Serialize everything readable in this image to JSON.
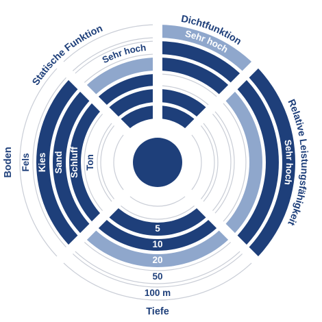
{
  "colors": {
    "dark": "#1e3f7a",
    "light": "#8fa7cc",
    "outline": "#c9cdd6",
    "text_dark": "#1e3f7a",
    "text_light": "#ffffff"
  },
  "quadrants": {
    "statische_funktion": {
      "title": "Statische Funktion",
      "ring_label": "Sehr hoch",
      "rings": [
        "white",
        "white",
        "light",
        "dark",
        "dark",
        "dark"
      ]
    },
    "dichtfunktion": {
      "title": "Dichtfunktion",
      "ring_label": "Sehr hoch",
      "rings": [
        "light",
        "dark",
        "dark",
        "white",
        "dark",
        "dark"
      ]
    },
    "relative_leistungsfaehigkeit": {
      "title": "Relative Leistungsfähigkeit",
      "ring_label": "Sehr hoch",
      "rings": [
        "dark",
        "dark",
        "light",
        "white",
        "white",
        "white"
      ]
    },
    "boden": {
      "title": "Boden",
      "ring_labels": [
        "Fels",
        "Kies",
        "Sand",
        "Schluff",
        "Ton"
      ],
      "rings": [
        "white",
        "dark",
        "dark",
        "dark",
        "white",
        "white"
      ]
    },
    "tiefe": {
      "title": "Tiefe",
      "ring_labels": [
        "100 m",
        "50",
        "20",
        "10",
        "5"
      ],
      "rings": [
        "white",
        "white",
        "light",
        "dark",
        "dark",
        "white"
      ]
    }
  }
}
